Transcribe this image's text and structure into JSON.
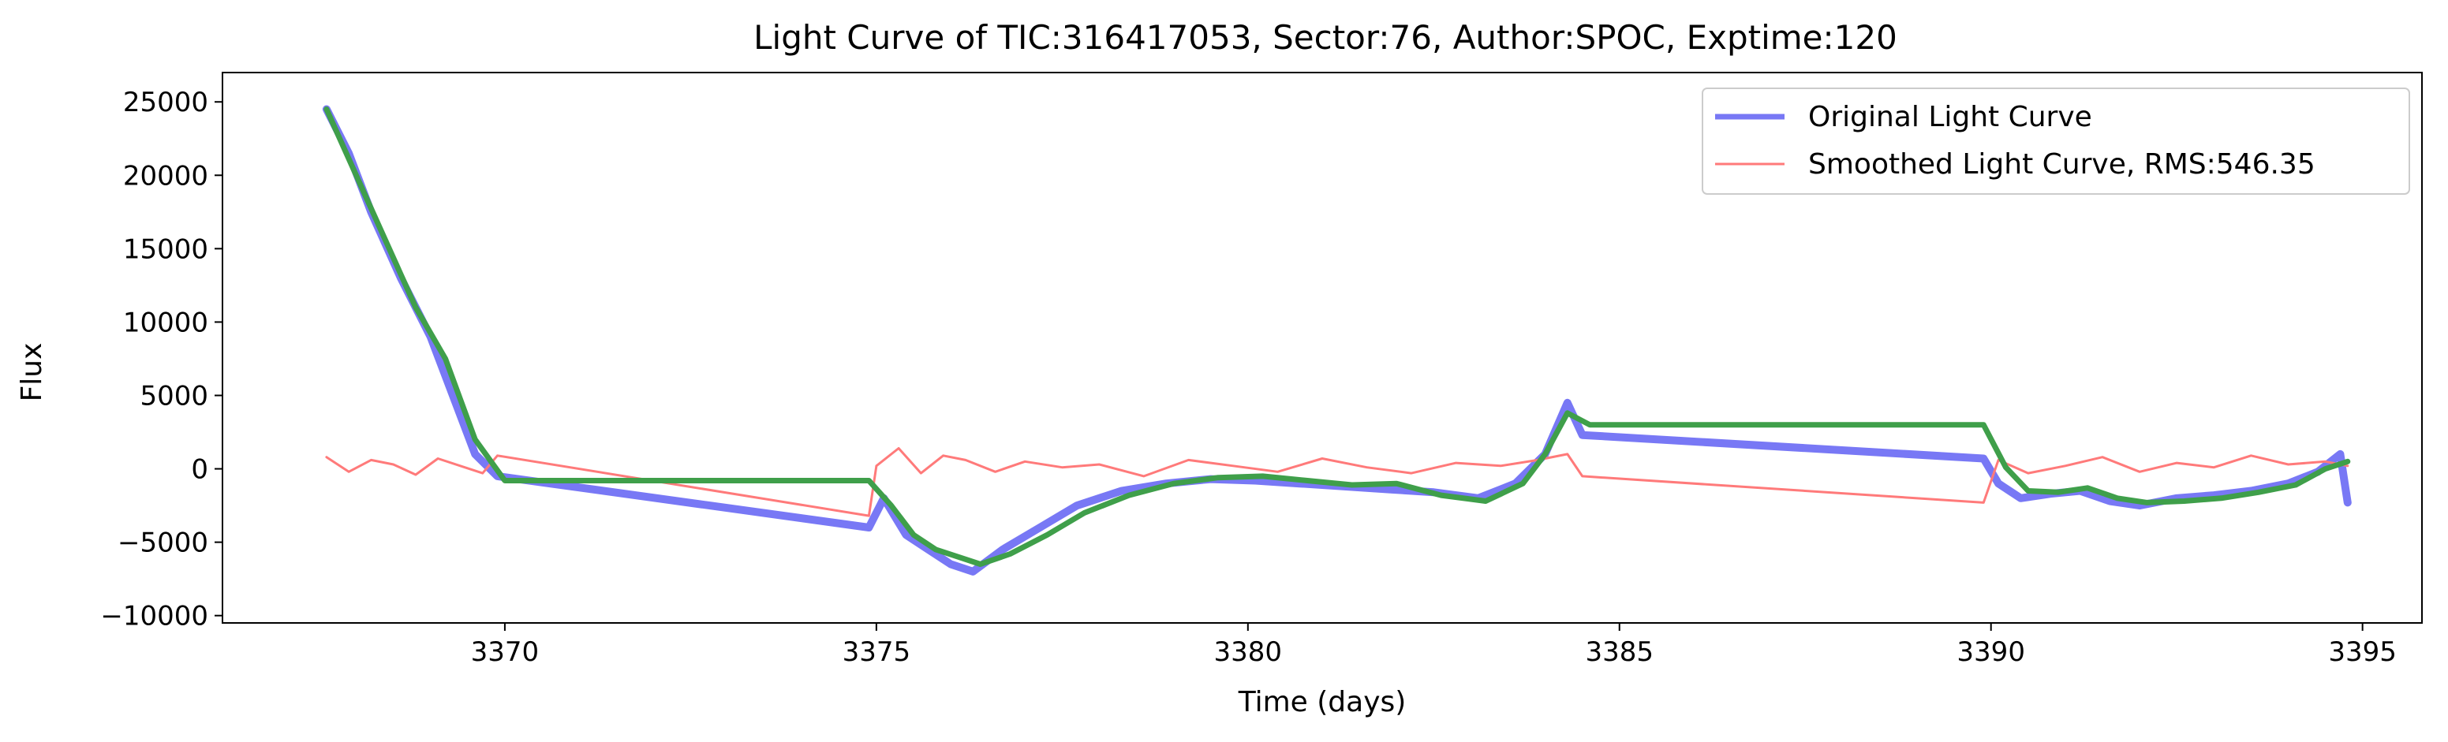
{
  "chart_data": {
    "type": "line",
    "title": "Light Curve of TIC:316417053, Sector:76, Author:SPOC, Exptime:120",
    "xlabel": "Time (days)",
    "ylabel": "Flux",
    "xlim": [
      3366.2,
      3395.8
    ],
    "ylim": [
      -10500,
      27000
    ],
    "xticks": [
      3370,
      3375,
      3380,
      3385,
      3390,
      3395
    ],
    "yticks": [
      -10000,
      -5000,
      0,
      5000,
      10000,
      15000,
      20000,
      25000
    ],
    "grid": false,
    "legend_position": "top-right",
    "series": [
      {
        "name": "Original Light Curve",
        "color": "#7878f5",
        "x": [
          3367.6,
          3367.9,
          3368.2,
          3368.6,
          3369.0,
          3369.3,
          3369.6,
          3369.9,
          3374.9,
          3375.1,
          3375.4,
          3375.7,
          3376.0,
          3376.3,
          3376.7,
          3377.2,
          3377.7,
          3378.3,
          3378.9,
          3379.5,
          3380.1,
          3380.7,
          3381.3,
          3381.9,
          3382.5,
          3383.1,
          3383.6,
          3384.0,
          3384.3,
          3384.5,
          3389.9,
          3390.1,
          3390.4,
          3390.8,
          3391.2,
          3391.6,
          3392.0,
          3392.5,
          3393.0,
          3393.5,
          3394.0,
          3394.4,
          3394.7,
          3394.8
        ],
        "y": [
          24500,
          21500,
          17500,
          13000,
          9000,
          5000,
          1000,
          -500,
          -4000,
          -2000,
          -4500,
          -5500,
          -6500,
          -7000,
          -5500,
          -4000,
          -2500,
          -1500,
          -1000,
          -700,
          -800,
          -1000,
          -1200,
          -1400,
          -1600,
          -2000,
          -1000,
          1000,
          4500,
          2300,
          700,
          -1000,
          -2000,
          -1700,
          -1500,
          -2200,
          -2500,
          -2000,
          -1800,
          -1500,
          -1000,
          -200,
          1000,
          -2300
        ]
      },
      {
        "name": "Smoothed Light Curve, RMS:546.35",
        "color": "#ff7a7a",
        "x": [
          3367.6,
          3367.9,
          3368.2,
          3368.5,
          3368.8,
          3369.1,
          3369.4,
          3369.7,
          3369.9,
          3374.9,
          3375.0,
          3375.3,
          3375.6,
          3375.9,
          3376.2,
          3376.6,
          3377.0,
          3377.5,
          3378.0,
          3378.6,
          3379.2,
          3379.8,
          3380.4,
          3381.0,
          3381.6,
          3382.2,
          3382.8,
          3383.4,
          3383.9,
          3384.3,
          3384.5,
          3389.9,
          3390.1,
          3390.5,
          3391.0,
          3391.5,
          3392.0,
          3392.5,
          3393.0,
          3393.5,
          3394.0,
          3394.5,
          3394.8
        ],
        "y": [
          800,
          -200,
          600,
          300,
          -400,
          700,
          200,
          -300,
          900,
          -3200,
          200,
          1400,
          -300,
          900,
          600,
          -200,
          500,
          100,
          300,
          -500,
          600,
          200,
          -200,
          700,
          100,
          -300,
          400,
          200,
          600,
          1000,
          -500,
          -2300,
          600,
          -300,
          200,
          800,
          -200,
          400,
          100,
          900,
          300,
          500,
          200
        ]
      },
      {
        "name": "",
        "color": "#3f9f4a",
        "x": [
          3367.6,
          3368.0,
          3368.4,
          3368.8,
          3369.2,
          3369.6,
          3370.0,
          3374.9,
          3375.2,
          3375.5,
          3375.8,
          3376.1,
          3376.4,
          3376.8,
          3377.3,
          3377.8,
          3378.4,
          3379.0,
          3379.6,
          3380.2,
          3380.8,
          3381.4,
          3382.0,
          3382.6,
          3383.2,
          3383.7,
          3384.0,
          3384.3,
          3384.6,
          3389.9,
          3390.2,
          3390.5,
          3390.9,
          3391.3,
          3391.7,
          3392.1,
          3392.6,
          3393.1,
          3393.6,
          3394.1,
          3394.5,
          3394.8
        ],
        "y": [
          24500,
          20000,
          15500,
          11000,
          7500,
          2000,
          -800,
          -800,
          -2500,
          -4500,
          -5500,
          -6000,
          -6500,
          -5800,
          -4500,
          -3000,
          -1800,
          -1000,
          -600,
          -500,
          -800,
          -1100,
          -1000,
          -1800,
          -2200,
          -1000,
          1000,
          3800,
          3000,
          3000,
          100,
          -1500,
          -1600,
          -1300,
          -2000,
          -2300,
          -2200,
          -2000,
          -1600,
          -1100,
          0,
          500
        ]
      }
    ],
    "legend": [
      {
        "label": "Original Light Curve",
        "color": "#7878f5"
      },
      {
        "label": "Smoothed Light Curve, RMS:546.35",
        "color": "#ff7a7a"
      }
    ]
  }
}
